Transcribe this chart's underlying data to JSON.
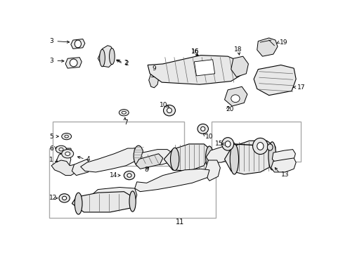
{
  "bg": "#ffffff",
  "lc": "#000000",
  "gc": "#666666",
  "figsize": [
    4.89,
    3.6
  ],
  "dpi": 100,
  "label_fs": 6.5,
  "border_lw": 0.8
}
